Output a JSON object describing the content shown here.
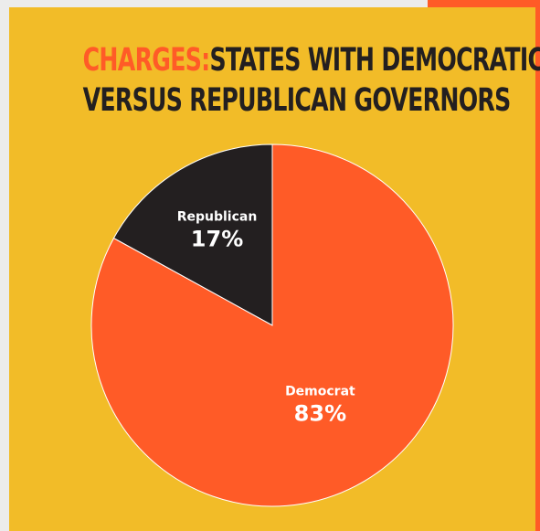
{
  "title": {
    "prefix": "CHARGES:",
    "line1": "STATES WITH DEMOCRATIC",
    "line2": "VERSUS REPUBLICAN GOVERNORS"
  },
  "colors": {
    "accent": "#ff5b27",
    "background": "#f2bc28",
    "dark": "#231f20"
  },
  "chart_data": {
    "type": "pie",
    "title": "CHARGES: STATES WITH DEMOCRATIC VERSUS REPUBLICAN GOVERNORS",
    "categories": [
      "Republican",
      "Democrat"
    ],
    "values": [
      17,
      83
    ],
    "labels": [
      "17%",
      "83%"
    ],
    "colors": [
      "#231f20",
      "#ff5b27"
    ],
    "start": "top, clockwise"
  }
}
